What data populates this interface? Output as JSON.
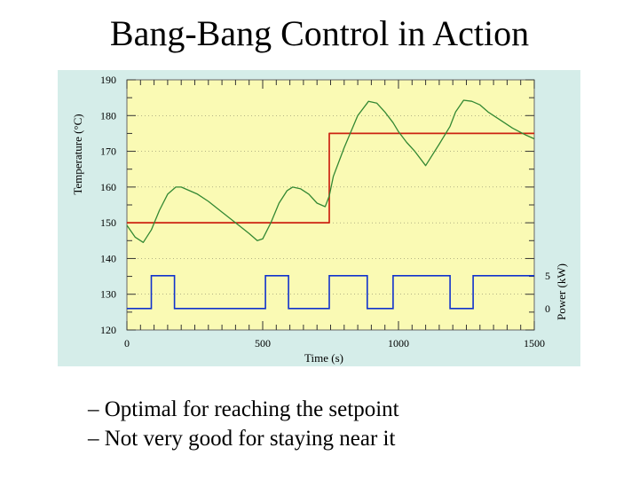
{
  "slide": {
    "title": "Bang-Bang Control in Action",
    "bullets": [
      "– Optimal for reaching the setpoint",
      "– Not very good for staying near it"
    ]
  },
  "chart_data": {
    "type": "line",
    "xlabel": "Time (s)",
    "ylabel": "Temperature (°C)",
    "y2label": "Power (kW)",
    "xlim": [
      0,
      1500
    ],
    "ylim": [
      120,
      190
    ],
    "y2_ticks": [
      "5",
      "0"
    ],
    "x_ticks": [
      "0",
      "500",
      "1000",
      "1500"
    ],
    "y_ticks": [
      "190",
      "180",
      "170",
      "160",
      "150",
      "140",
      "130",
      "120"
    ],
    "grid": true,
    "colors": {
      "background": "#d5ede9",
      "plot_area": "#fafab4",
      "temperature": "#338833",
      "setpoint": "#cc2211",
      "power": "#1133cc"
    },
    "series": [
      {
        "key": "setpoint",
        "x": [
          0,
          745,
          745,
          1500
        ],
        "y": [
          150,
          150,
          175,
          175
        ]
      },
      {
        "key": "temperature",
        "x": [
          0,
          30,
          60,
          90,
          120,
          150,
          180,
          200,
          230,
          260,
          300,
          350,
          400,
          450,
          480,
          500,
          530,
          560,
          590,
          610,
          640,
          670,
          700,
          730,
          745,
          760,
          800,
          850,
          890,
          920,
          950,
          980,
          1000,
          1030,
          1060,
          1100,
          1150,
          1190,
          1210,
          1240,
          1270,
          1300,
          1330,
          1370,
          1420,
          1470,
          1500
        ],
        "y": [
          149.3,
          146,
          144.5,
          148,
          153.5,
          158,
          160,
          160,
          159,
          158,
          156,
          153,
          150,
          147,
          145,
          145.5,
          150,
          155.5,
          159,
          160,
          159.5,
          158,
          155.5,
          154.5,
          157.5,
          163,
          171,
          180,
          184,
          183.5,
          181,
          178,
          175.5,
          172.5,
          170,
          166,
          172,
          177,
          181,
          184.3,
          184,
          183,
          181,
          179,
          176.5,
          174.5,
          173.5
        ]
      }
    ],
    "power_series": {
      "x": [
        0,
        90,
        90,
        175,
        175,
        510,
        510,
        595,
        595,
        745,
        745,
        885,
        885,
        980,
        980,
        1190,
        1190,
        1275,
        1275,
        1500
      ],
      "y": [
        0,
        0,
        5,
        5,
        0,
        0,
        5,
        5,
        0,
        0,
        5,
        5,
        0,
        0,
        5,
        5,
        0,
        0,
        5,
        5
      ]
    }
  }
}
